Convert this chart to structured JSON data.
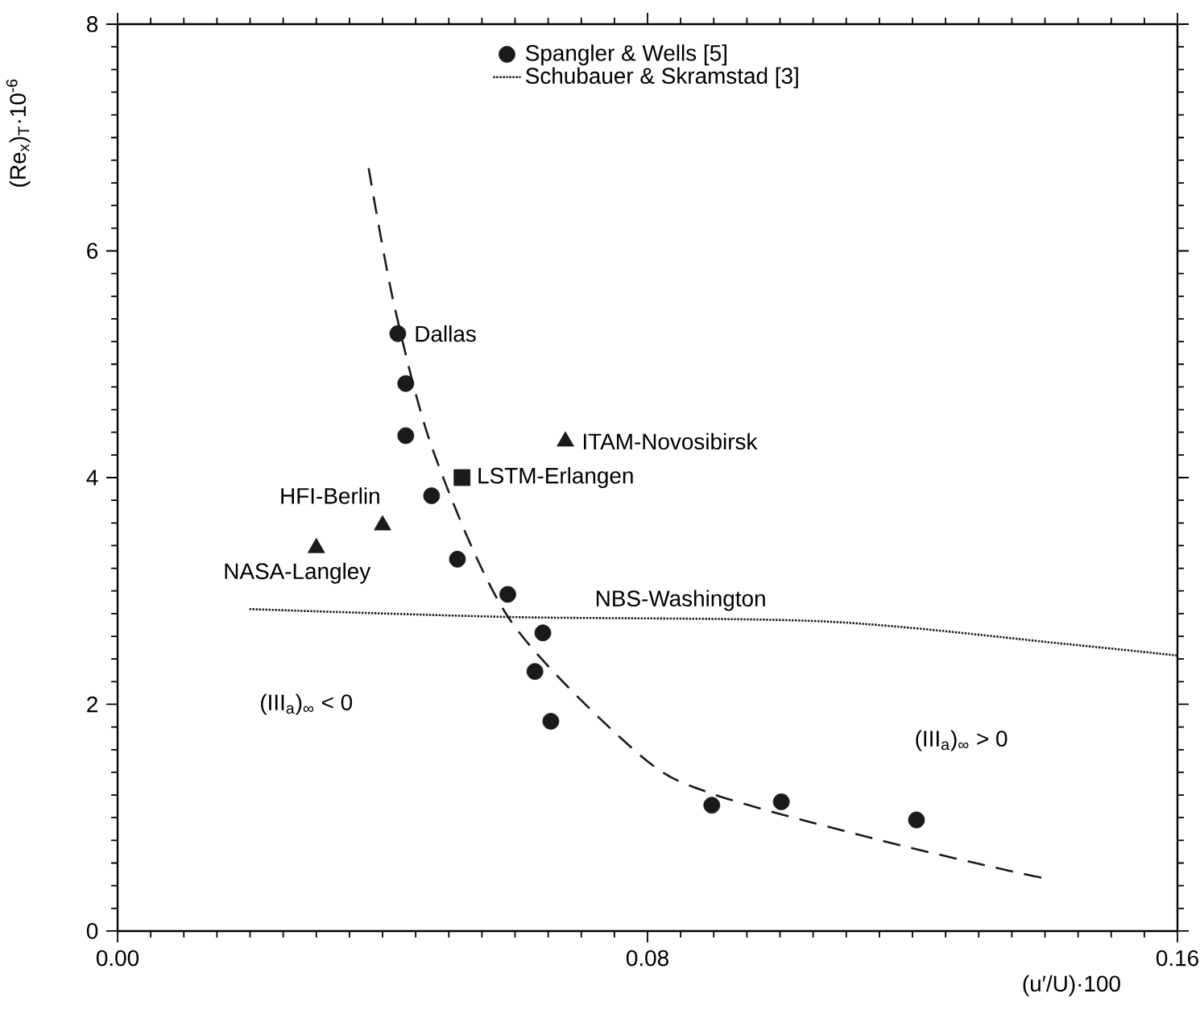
{
  "chart_data": {
    "type": "scatter",
    "xlabel": "(u′/U)·100",
    "ylabel": "(Re$_{x}$)$_{T}$·10$^{-6}$",
    "xlim": [
      0,
      0.16
    ],
    "ylim": [
      0,
      8
    ],
    "xticks": [
      {
        "value": 0,
        "label": "0.00"
      },
      {
        "value": 0.08,
        "label": "0.08"
      },
      {
        "value": 0.16,
        "label": "0.16"
      }
    ],
    "yticks": [
      0,
      2,
      4,
      6,
      8
    ],
    "legend": "top",
    "series": [
      {
        "name": "Spangler & Wells [5]",
        "type": "scatter",
        "marker": "circle",
        "color": "#1a1a1a",
        "x": [
          0.0423,
          0.0435,
          0.0435,
          0.0474,
          0.0513,
          0.0589,
          0.0642,
          0.063,
          0.0654,
          0.0897,
          0.1002,
          0.1206
        ],
        "values": [
          5.27,
          4.83,
          4.37,
          3.84,
          3.28,
          2.97,
          2.63,
          2.29,
          1.85,
          1.11,
          1.14,
          0.98
        ]
      },
      {
        "name": "Schubauer & Skramstad [3]",
        "type": "line",
        "line_style": "dotted",
        "marker": "none",
        "color": "#1a1a1a",
        "x": [
          0.0199,
          0.0593,
          0.1071,
          0.1435,
          0.16
        ],
        "values": [
          2.84,
          2.77,
          2.73,
          2.53,
          2.43
        ]
      },
      {
        "type": "line",
        "line_style": "dashed",
        "marker": "none",
        "color": "#1a1a1a",
        "x": [
          0.0379,
          0.0418,
          0.0478,
          0.0593,
          0.0787,
          0.0898,
          0.1152,
          0.137,
          0.1403
        ],
        "values": [
          6.73,
          5.51,
          4.21,
          2.74,
          1.56,
          1.21,
          0.8,
          0.5,
          0.47
        ]
      },
      {
        "type": "scatter",
        "marker": "triangle",
        "color": "#1a1a1a",
        "x": [
          0.03,
          0.04,
          0.0676
        ],
        "values": [
          3.38,
          3.58,
          4.32
        ]
      },
      {
        "type": "scatter",
        "marker": "square",
        "color": "#1a1a1a",
        "x": [
          0.052
        ],
        "values": [
          4.0
        ]
      }
    ],
    "annotations": [
      {
        "text": "Dallas",
        "x": 0.0423,
        "y": 5.27
      },
      {
        "text": "HFI-Berlin",
        "x": 0.04,
        "y": 3.58
      },
      {
        "text": "NASA-Langley",
        "x": 0.03,
        "y": 3.38
      },
      {
        "text": "ITAM-Novosibirsk",
        "x": 0.0676,
        "y": 4.32
      },
      {
        "text": "LSTM-Erlangen",
        "x": 0.052,
        "y": 4.0
      },
      {
        "text": "NBS-Washington",
        "x": 0.085,
        "y": 2.75
      },
      "(III$_{a}$)$_{∞}$ < 0",
      "(III$_{a}$)$_{∞}$ > 0"
    ]
  }
}
